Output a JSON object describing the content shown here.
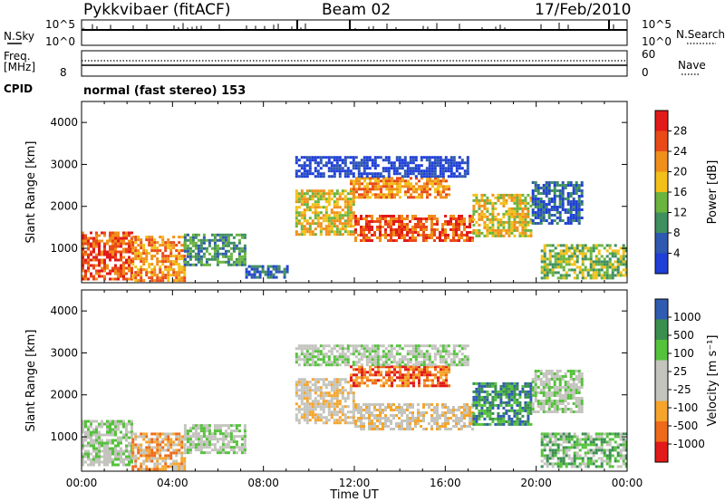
{
  "header": {
    "station": "Pykkvibaer (fitACF)",
    "beam": "Beam 02",
    "date": "17/Feb/2010"
  },
  "strips": {
    "nsky_label": "N.Sky",
    "nsky_ticks": [
      "10^5",
      "10^0"
    ],
    "nsearch_label": "N.Search",
    "nsearch_ticks": [
      "10^5",
      "10^0"
    ],
    "freq_label": "Freq.",
    "freq_unit": "[MHz]",
    "freq_ticks": [
      "8"
    ],
    "nave_label": "Nave",
    "nave_ticks": [
      "60",
      "0"
    ],
    "cpid_label": "CPID",
    "cpid_text": "normal (fast stereo) 153"
  },
  "colors": {
    "power": [
      "#1f3fd8",
      "#2f59b0",
      "#3f8f5f",
      "#6ab43f",
      "#f2c018",
      "#f08f1a",
      "#ea4a18",
      "#e21a1a"
    ],
    "velocity": [
      "#e21a1a",
      "#ee6a1a",
      "#f5a52c",
      "#c4c4be",
      "#c4c4be",
      "#55c23c",
      "#3a8f4f",
      "#2f5bb0"
    ]
  },
  "chart_data": [
    {
      "type": "heatmap",
      "quantity": "power",
      "xlabel": "",
      "ylabel": "Slant Range [km]",
      "xlim": [
        0,
        24
      ],
      "ylim": [
        180,
        4500
      ],
      "yticks": [
        "1000",
        "2000",
        "3000",
        "4000"
      ],
      "colorbar": {
        "label": "Power [dB]",
        "range": [
          0,
          32
        ],
        "ticks": [
          "4",
          "8",
          "12",
          "16",
          "20",
          "24",
          "28"
        ]
      },
      "regions": [
        {
          "t0": 0.0,
          "t1": 2.2,
          "r0": 250,
          "r1": 1400,
          "level": 6
        },
        {
          "t0": 2.2,
          "t1": 4.5,
          "r0": 250,
          "r1": 1300,
          "level": 5
        },
        {
          "t0": 4.5,
          "t1": 7.2,
          "r0": 600,
          "r1": 1350,
          "level": 2
        },
        {
          "t0": 7.2,
          "t1": 9.0,
          "r0": 300,
          "r1": 600,
          "level": 1
        },
        {
          "t0": 9.4,
          "t1": 12.0,
          "r0": 1300,
          "r1": 2400,
          "level": 4
        },
        {
          "t0": 12.0,
          "t1": 17.2,
          "r0": 1200,
          "r1": 1800,
          "level": 6
        },
        {
          "t0": 11.8,
          "t1": 16.2,
          "r0": 2200,
          "r1": 2700,
          "level": 5
        },
        {
          "t0": 9.4,
          "t1": 17.0,
          "r0": 2700,
          "r1": 3200,
          "level": 0
        },
        {
          "t0": 17.2,
          "t1": 19.8,
          "r0": 1300,
          "r1": 2300,
          "level": 4
        },
        {
          "t0": 19.8,
          "t1": 22.0,
          "r0": 1600,
          "r1": 2600,
          "level": 1
        },
        {
          "t0": 20.2,
          "t1": 24.0,
          "r0": 300,
          "r1": 1100,
          "level": 3
        }
      ]
    },
    {
      "type": "heatmap",
      "quantity": "velocity",
      "xlabel": "Time UT",
      "ylabel": "Slant Range [km]",
      "xlim": [
        0,
        24
      ],
      "ylim": [
        180,
        4500
      ],
      "xticks": [
        "00:00",
        "04:00",
        "08:00",
        "12:00",
        "16:00",
        "20:00",
        "00:00"
      ],
      "yticks": [
        "1000",
        "2000",
        "3000",
        "4000"
      ],
      "colorbar": {
        "label": "Velocity [m s⁻¹]",
        "range": [
          -1500,
          1500
        ],
        "ticks": [
          "1000",
          "500",
          "100",
          "25",
          "-25",
          "-100",
          "-500",
          "-1000"
        ]
      },
      "regions": [
        {
          "t0": 0.0,
          "t1": 2.2,
          "r0": 300,
          "r1": 1400,
          "level": 4
        },
        {
          "t0": 2.2,
          "t1": 4.5,
          "r0": 250,
          "r1": 1100,
          "level": 2
        },
        {
          "t0": 4.5,
          "t1": 7.2,
          "r0": 600,
          "r1": 1300,
          "level": 4
        },
        {
          "t0": 9.4,
          "t1": 12.0,
          "r0": 1300,
          "r1": 2400,
          "level": 3
        },
        {
          "t0": 12.0,
          "t1": 17.2,
          "r0": 1200,
          "r1": 1800,
          "level": 3
        },
        {
          "t0": 11.8,
          "t1": 16.2,
          "r0": 2200,
          "r1": 2700,
          "level": 1
        },
        {
          "t0": 9.4,
          "t1": 17.0,
          "r0": 2700,
          "r1": 3200,
          "level": 4
        },
        {
          "t0": 17.2,
          "t1": 19.8,
          "r0": 1300,
          "r1": 2300,
          "level": 6
        },
        {
          "t0": 19.8,
          "t1": 22.0,
          "r0": 1600,
          "r1": 2600,
          "level": 4
        },
        {
          "t0": 20.2,
          "t1": 24.0,
          "r0": 300,
          "r1": 1100,
          "level": 5
        }
      ]
    }
  ]
}
